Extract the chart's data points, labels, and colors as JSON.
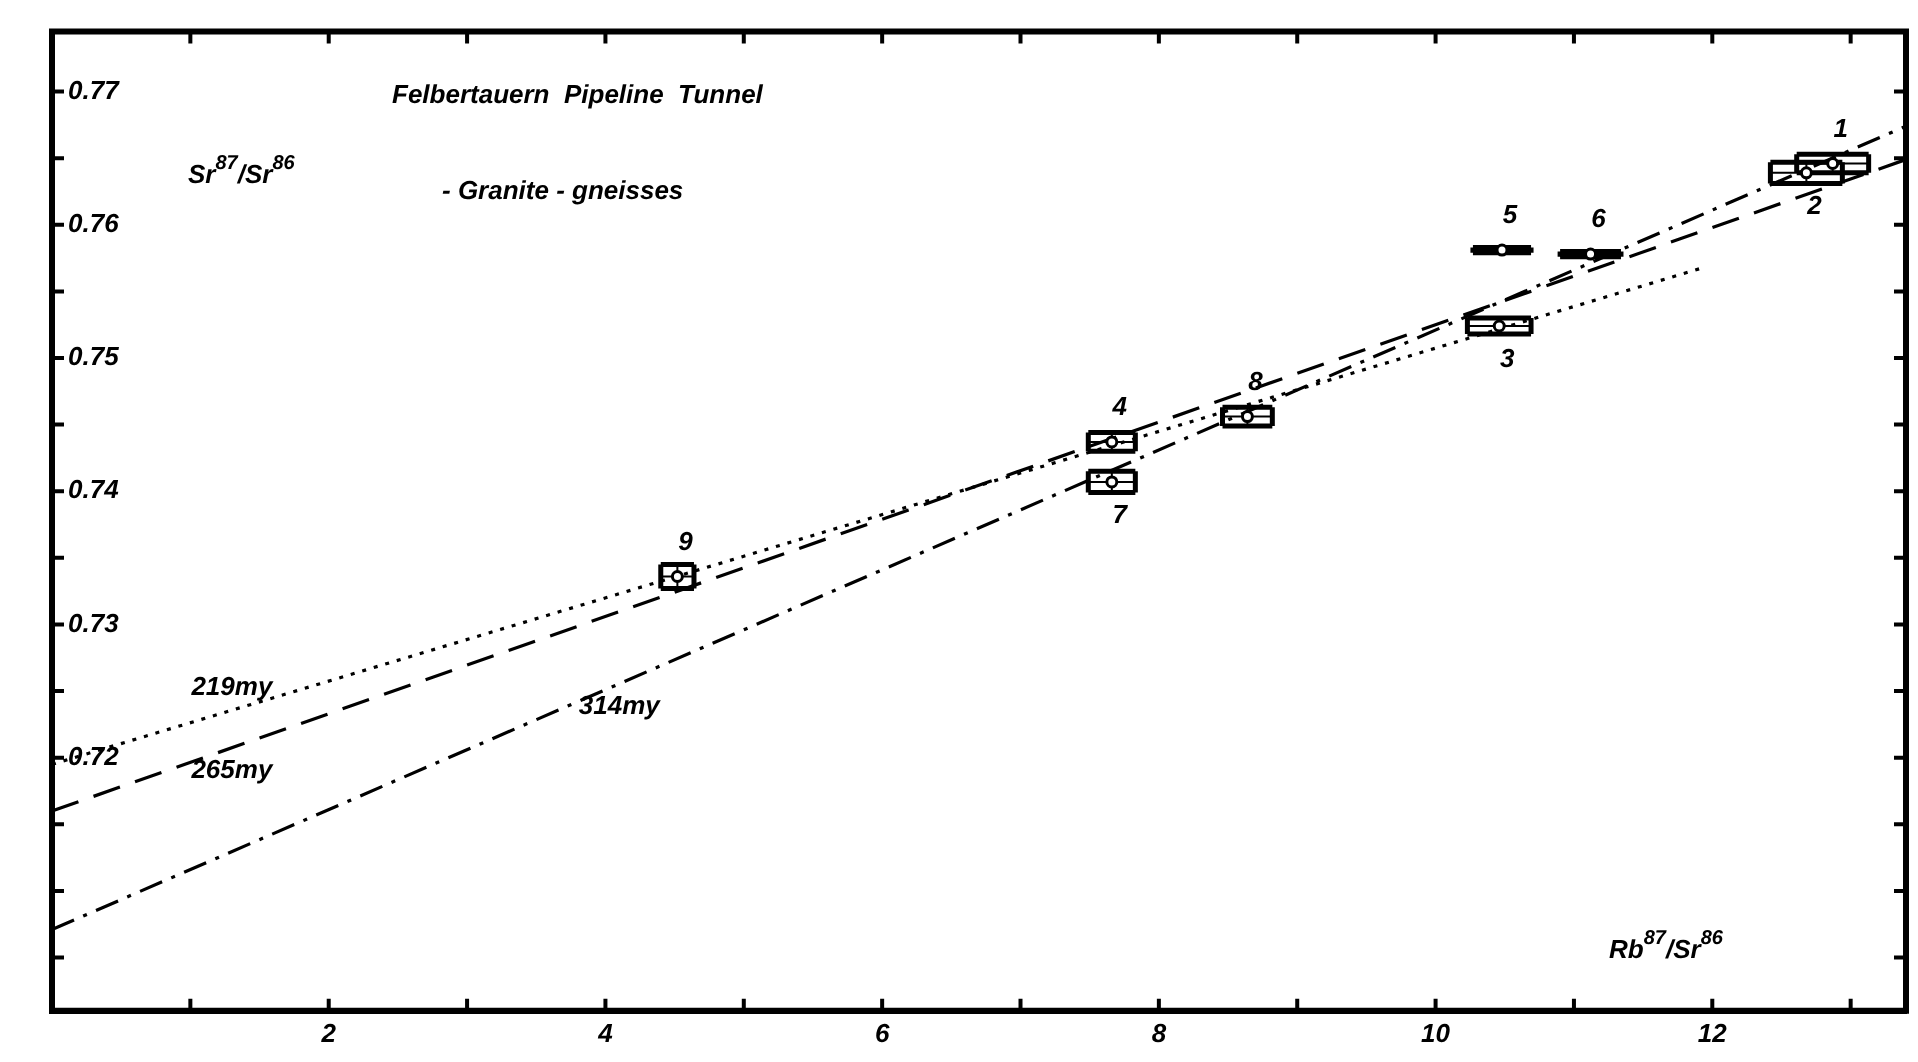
{
  "chart_data": {
    "type": "scatter",
    "title": "Felbertauern  Pipeline  Tunnel",
    "subtitle": "- Granite - gneisses",
    "xlabel": "Rb$^{87}$/Sr$^{86}$",
    "ylabel": "Sr$^{87}$/Sr$^{86}$",
    "xlim": [
      0,
      13.4
    ],
    "ylim": [
      0.701,
      0.7745
    ],
    "xticks": [
      {
        "value": 1,
        "label": null
      },
      2,
      {
        "value": 3,
        "label": null
      },
      4,
      {
        "value": 5,
        "label": null
      },
      6,
      {
        "value": 7,
        "label": null
      },
      8,
      {
        "value": 9,
        "label": null
      },
      10,
      {
        "value": 11,
        "label": null
      },
      12,
      {
        "value": 13,
        "label": null
      }
    ],
    "yticks": [
      {
        "value": 0.705,
        "label": null
      },
      {
        "value": 0.71,
        "label": null
      },
      {
        "value": 0.715,
        "label": null
      },
      0.72,
      {
        "value": 0.725,
        "label": null
      },
      0.73,
      {
        "value": 0.735,
        "label": null
      },
      0.74,
      {
        "value": 0.745,
        "label": null
      },
      0.75,
      {
        "value": 0.755,
        "label": null
      },
      0.76,
      {
        "value": 0.765,
        "label": null
      },
      0.77
    ],
    "grid": false,
    "legend": false,
    "series": [
      {
        "marker": "circle",
        "color": "#000000",
        "x": [
          12.87,
          12.68,
          10.46,
          7.66,
          10.48,
          11.12,
          7.66,
          8.64,
          4.52
        ],
        "values": [
          0.7646,
          0.7639,
          0.7524,
          0.7437,
          0.7581,
          0.7578,
          0.7407,
          0.7456,
          0.7336
        ],
        "xerrors": [
          0.26,
          0.26,
          0.23,
          0.17,
          0.21,
          0.22,
          0.17,
          0.18,
          0.12
        ],
        "errors": [
          0.0007,
          0.0008,
          0.0006,
          0.0007,
          0.0002,
          0.0002,
          0.0008,
          0.0007,
          0.0009
        ]
      },
      {
        "type": "line",
        "line_style": "dotted",
        "color": "#000000",
        "x": [
          0,
          11.94
        ],
        "values": [
          0.7195,
          0.7568
        ]
      },
      {
        "type": "line",
        "line_style": "dashed",
        "color": "#000000",
        "x": [
          0,
          13.4
        ],
        "values": [
          0.716,
          0.7649
        ]
      },
      {
        "type": "line",
        "line_style": "dashdot",
        "color": "#000000",
        "x": [
          0,
          13.4
        ],
        "values": [
          0.7071,
          0.7674
        ]
      }
    ],
    "annotations": [
      {
        "text": "1",
        "x": 12.87,
        "y": 0.7646
      },
      {
        "text": "2",
        "x": 12.68,
        "y": 0.7639
      },
      {
        "text": "3",
        "x": 10.46,
        "y": 0.7524
      },
      {
        "text": "4",
        "x": 7.66,
        "y": 0.7437
      },
      {
        "text": "5",
        "x": 10.48,
        "y": 0.7581
      },
      {
        "text": "6",
        "x": 11.12,
        "y": 0.7578
      },
      {
        "text": "7",
        "x": 7.66,
        "y": 0.7407
      },
      {
        "text": "8",
        "x": 8.64,
        "y": 0.7456
      },
      {
        "text": "9",
        "x": 4.52,
        "y": 0.7336
      },
      {
        "text": "219my",
        "x": 1.3,
        "y": 0.7236
      },
      {
        "text": "265my",
        "x": 1.3,
        "y": 0.7207
      },
      {
        "text": "314my",
        "x": 4.1,
        "y": 0.7255
      }
    ]
  }
}
